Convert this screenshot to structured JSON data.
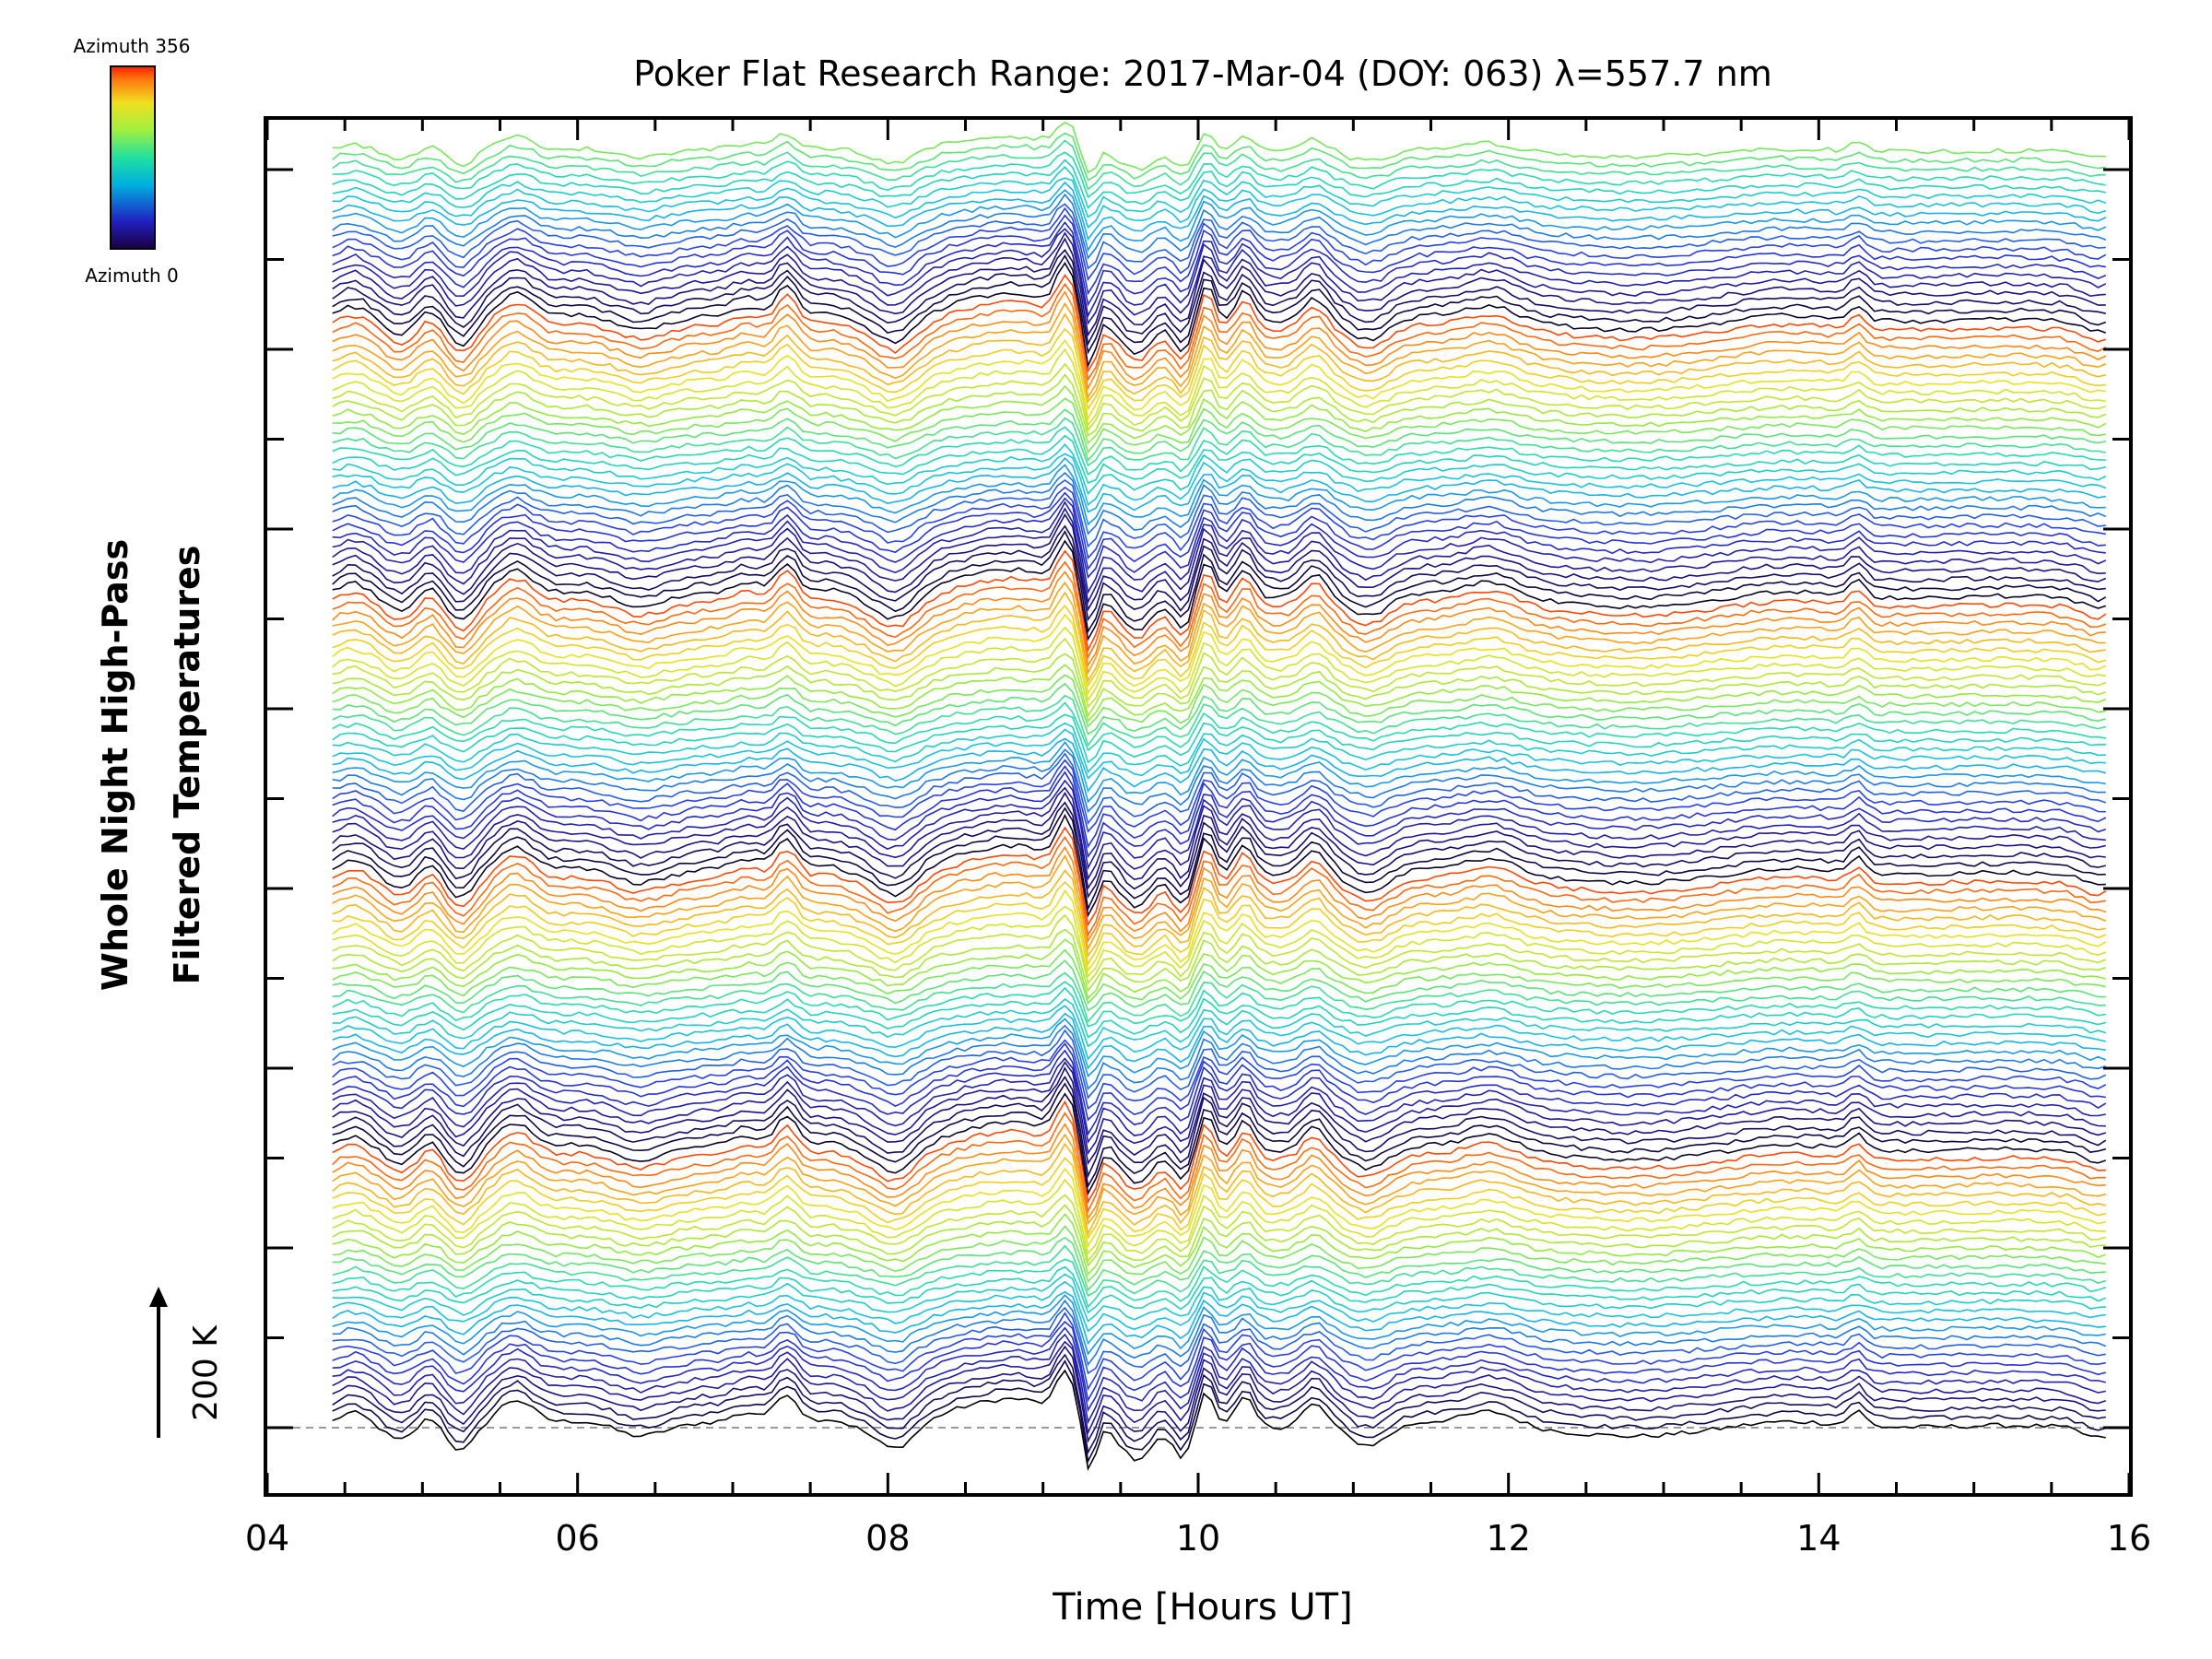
{
  "chart_data": {
    "type": "line",
    "title": "Poker Flat Research Range: 2017-Mar-04 (DOY: 063) λ=557.7 nm",
    "xlabel": "Time [Hours UT]",
    "ylabel_line1": "Whole Night High-Pass",
    "ylabel_line2": "Filtered Temperatures",
    "x_ticks": [
      "04",
      "06",
      "08",
      "10",
      "12",
      "14",
      "16"
    ],
    "xlim": [
      4,
      16
    ],
    "x_data_range": [
      4.42,
      15.85
    ],
    "stack_scale_label": "200 K",
    "stack_scale_kelvin": 200,
    "n_traces": 144,
    "colorbar": {
      "top_label": "Azimuth 356",
      "bottom_label": "Azimuth 0",
      "azimuth_range": [
        0,
        356
      ]
    },
    "baseline_dashed": true,
    "grid": false,
    "notes_colors": {
      "traces": "rainbow by azimuth, repeating cycles",
      "axis": "#000000",
      "baseline": "#9a9a9a"
    }
  }
}
